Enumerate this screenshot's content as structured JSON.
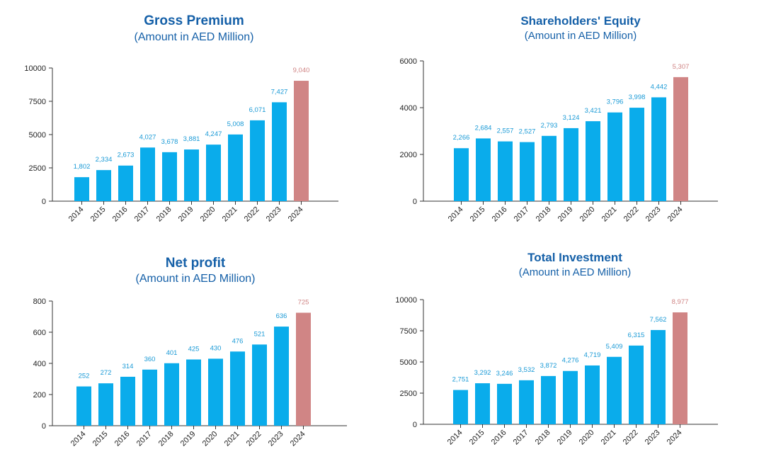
{
  "colors": {
    "title": "#1560a8",
    "bar": "#0aaceb",
    "bar_highlight": "#d08585",
    "label": "#1a9ad6",
    "label_highlight": "#d08585",
    "axis": "#333333"
  },
  "chart_data": [
    {
      "type": "bar",
      "title": "Gross Premium",
      "subtitle": "(Amount in AED Million)",
      "categories": [
        "2014",
        "2015",
        "2016",
        "2017",
        "2018",
        "2019",
        "2020",
        "2021",
        "2022",
        "2023",
        "2024"
      ],
      "values": [
        1802,
        2334,
        2673,
        4027,
        3678,
        3881,
        4247,
        5008,
        6071,
        7427,
        9040
      ],
      "data_labels": [
        "1,802",
        "2,334",
        "2,673",
        "4,027",
        "3,678",
        "3,881",
        "4,247",
        "5,008",
        "6,071",
        "7,427",
        "9,040"
      ],
      "highlight_index": 10,
      "ylim": [
        0,
        10000
      ],
      "yticks": [
        0,
        2500,
        5000,
        7500,
        10000
      ],
      "ytick_labels": [
        "0",
        "2500",
        "5000",
        "7500",
        "10000"
      ],
      "grid": false,
      "legend": "none"
    },
    {
      "type": "bar",
      "title": "Shareholders' Equity",
      "subtitle": "(Amount in AED Million)",
      "categories": [
        "2014",
        "2015",
        "2016",
        "2017",
        "2018",
        "2019",
        "2020",
        "2021",
        "2022",
        "2023",
        "2024"
      ],
      "values": [
        2266,
        2684,
        2557,
        2527,
        2793,
        3124,
        3421,
        3796,
        3998,
        4442,
        5307
      ],
      "data_labels": [
        "2,266",
        "2,684",
        "2,557",
        "2,527",
        "2,793",
        "3,124",
        "3,421",
        "3,796",
        "3,998",
        "4,442",
        "5,307"
      ],
      "highlight_index": 10,
      "ylim": [
        0,
        6000
      ],
      "yticks": [
        0,
        2000,
        4000,
        6000
      ],
      "ytick_labels": [
        "0",
        "2000",
        "4000",
        "6000"
      ],
      "grid": false,
      "legend": "none"
    },
    {
      "type": "bar",
      "title": "Net profit",
      "subtitle": "(Amount in AED Million)",
      "categories": [
        "2014",
        "2015",
        "2016",
        "2017",
        "2018",
        "2019",
        "2020",
        "2021",
        "2022",
        "2023",
        "2024"
      ],
      "values": [
        252,
        272,
        314,
        360,
        401,
        425,
        430,
        476,
        521,
        636,
        725
      ],
      "data_labels": [
        "252",
        "272",
        "314",
        "360",
        "401",
        "425",
        "430",
        "476",
        "521",
        "636",
        "725"
      ],
      "highlight_index": 10,
      "ylim": [
        0,
        800
      ],
      "yticks": [
        0,
        200,
        400,
        600,
        800
      ],
      "ytick_labels": [
        "0",
        "200",
        "400",
        "600",
        "800"
      ],
      "grid": false,
      "legend": "none"
    },
    {
      "type": "bar",
      "title": "Total Investment",
      "subtitle": "(Amount in AED Million)",
      "categories": [
        "2014",
        "2015",
        "2016",
        "2017",
        "2018",
        "2019",
        "2020",
        "2021",
        "2022",
        "2023",
        "2024"
      ],
      "values": [
        2751,
        3292,
        3246,
        3532,
        3872,
        4276,
        4719,
        5409,
        6315,
        7562,
        8977
      ],
      "data_labels": [
        "2,751",
        "3,292",
        "3,246",
        "3,532",
        "3,872",
        "4,276",
        "4,719",
        "5,409",
        "6,315",
        "7,562",
        "8,977"
      ],
      "highlight_index": 10,
      "ylim": [
        0,
        10000
      ],
      "yticks": [
        0,
        2500,
        5000,
        7500,
        10000
      ],
      "ytick_labels": [
        "0",
        "2500",
        "5000",
        "7500",
        "10000"
      ],
      "grid": false,
      "legend": "none"
    }
  ]
}
